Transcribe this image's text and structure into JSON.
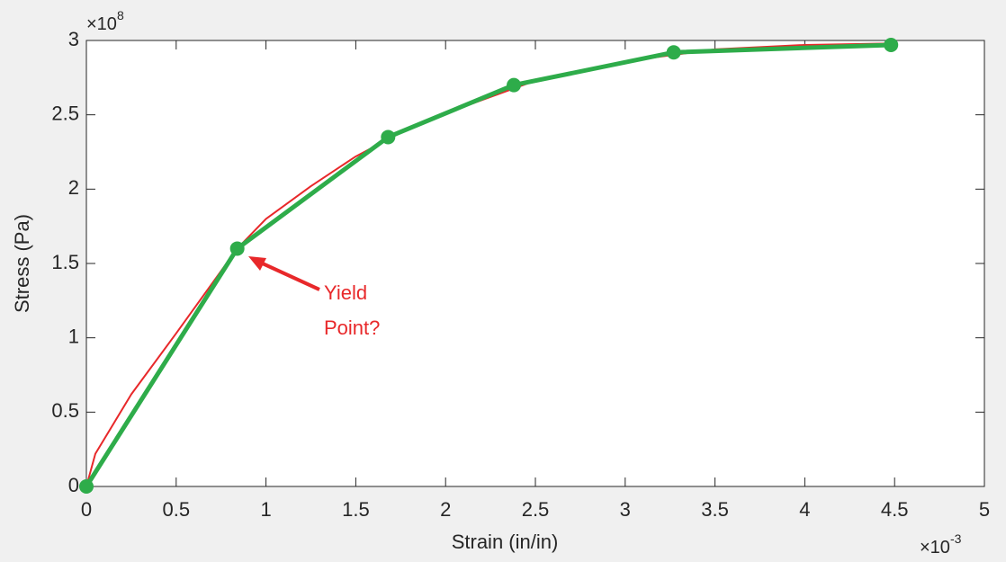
{
  "chart_data": {
    "type": "line",
    "xlabel": "Strain (in/in)",
    "ylabel": "Stress (Pa)",
    "x_multiplier": {
      "base": "×10",
      "exponent": "-3"
    },
    "y_multiplier": {
      "base": "×10",
      "exponent": "8"
    },
    "xlim": [
      0,
      5
    ],
    "xticks": [
      0,
      0.5,
      1,
      1.5,
      2,
      2.5,
      3,
      3.5,
      4,
      4.5,
      5
    ],
    "ylim": [
      0,
      3
    ],
    "yticks": [
      0,
      0.5,
      1,
      1.5,
      2,
      2.5,
      3
    ],
    "series": [
      {
        "x": [
          0,
          0.05,
          0.25,
          0.5,
          0.84,
          1.0,
          1.25,
          1.5,
          1.75,
          2.0,
          2.5,
          3.0,
          3.5,
          4.0,
          4.5
        ],
        "values": [
          0,
          0.22,
          0.62,
          1.03,
          1.6,
          1.8,
          2.02,
          2.22,
          2.38,
          2.51,
          2.73,
          2.86,
          2.94,
          2.97,
          2.98
        ],
        "color": "#e8282a",
        "width": 2,
        "markers": false
      },
      {
        "x": [
          0,
          0.84,
          1.68,
          2.38,
          3.27,
          4.48
        ],
        "values": [
          0,
          1.6,
          2.35,
          2.7,
          2.92,
          2.97
        ],
        "color": "#2eac4a",
        "width": 5,
        "markers": true
      }
    ],
    "annotation": {
      "lines": [
        "Yield",
        "Point?"
      ],
      "color": "#e8282a"
    }
  }
}
